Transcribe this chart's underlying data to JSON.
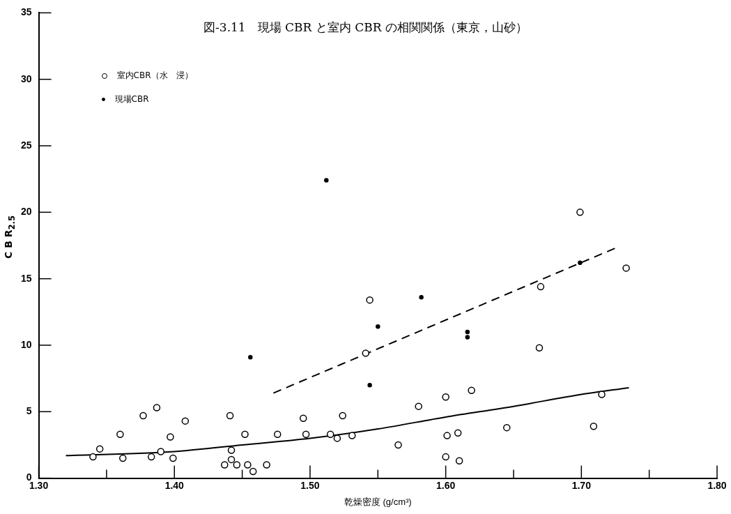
{
  "chart_data": {
    "type": "scatter",
    "title": "図-3.11　現場 CBR と室内 CBR の相関関係（東京，山砂）",
    "xlabel": "乾燥密度 (g/cm³)",
    "ylabel": "C B R$_{2.5}$",
    "xlim": [
      1.3,
      1.8
    ],
    "xticks": [
      {
        "value": 1.3,
        "label": "1.30"
      },
      {
        "value": 1.35,
        "label": null
      },
      {
        "value": 1.4,
        "label": "1.40"
      },
      {
        "value": 1.45,
        "label": null
      },
      {
        "value": 1.5,
        "label": "1.50"
      },
      {
        "value": 1.55,
        "label": null
      },
      {
        "value": 1.6,
        "label": "1.60"
      },
      {
        "value": 1.65,
        "label": null
      },
      {
        "value": 1.7,
        "label": "1.70"
      },
      {
        "value": 1.75,
        "label": null
      },
      {
        "value": 1.8,
        "label": "1.80"
      }
    ],
    "ylim": [
      0,
      35
    ],
    "yticks": [
      0,
      5,
      10,
      15,
      20,
      25,
      30,
      35
    ],
    "grid": false,
    "legend": "top left",
    "series": [
      {
        "name": "室内CBR（水　浸）",
        "color": "#000000",
        "marker": "circle",
        "x": [
          1.34,
          1.345,
          1.36,
          1.362,
          1.377,
          1.383,
          1.387,
          1.39,
          1.397,
          1.399,
          1.408,
          1.441,
          1.442,
          1.442,
          1.437,
          1.446,
          1.452,
          1.454,
          1.458,
          1.468,
          1.476,
          1.495,
          1.497,
          1.515,
          1.52,
          1.524,
          1.531,
          1.565,
          1.58,
          1.6,
          1.601,
          1.609,
          1.6,
          1.61,
          1.619,
          1.645,
          1.669,
          1.67,
          1.709,
          1.715,
          1.733,
          1.699,
          1.544,
          1.541
        ],
        "values": [
          1.6,
          2.2,
          3.3,
          1.5,
          4.7,
          1.6,
          5.3,
          2.0,
          3.1,
          1.5,
          4.3,
          4.7,
          2.1,
          1.4,
          1.0,
          1.0,
          3.3,
          1.0,
          0.5,
          1.0,
          3.3,
          4.5,
          3.3,
          3.3,
          3.0,
          4.7,
          3.2,
          2.5,
          5.4,
          6.1,
          3.2,
          3.4,
          1.6,
          1.3,
          6.6,
          3.8,
          9.8,
          14.4,
          3.9,
          6.3,
          15.8,
          20.0,
          13.4,
          9.4
        ]
      },
      {
        "name": "現場CBR",
        "color": "#000000",
        "marker": "circle",
        "x": [
          1.512,
          1.55,
          1.582,
          1.616,
          1.616,
          1.544,
          1.699,
          1.456
        ],
        "values": [
          22.4,
          11.4,
          13.6,
          11.0,
          10.6,
          7.0,
          16.2,
          9.1
        ]
      },
      {
        "type": "line",
        "color": "#000000",
        "line_style": "dashed",
        "x": [
          1.473,
          1.725
        ],
        "values": [
          6.4,
          17.3
        ]
      },
      {
        "type": "line",
        "color": "#000000",
        "line_style": "solid",
        "x": [
          1.32,
          1.4,
          1.45,
          1.5,
          1.55,
          1.6,
          1.65,
          1.7,
          1.735
        ],
        "values": [
          1.7,
          2.0,
          2.5,
          3.0,
          3.7,
          4.6,
          5.4,
          6.3,
          6.8
        ]
      }
    ]
  }
}
